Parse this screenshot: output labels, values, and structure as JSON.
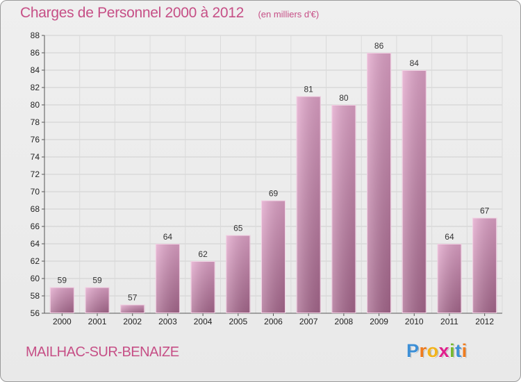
{
  "chart_data": {
    "type": "bar",
    "title": "Charges de Personnel 2000 à 2012",
    "subtitle": "(en milliers d'€)",
    "categories": [
      "2000",
      "2001",
      "2002",
      "2003",
      "2004",
      "2005",
      "2006",
      "2007",
      "2008",
      "2009",
      "2010",
      "2011",
      "2012"
    ],
    "values": [
      59,
      59,
      57,
      64,
      62,
      65,
      69,
      81,
      80,
      86,
      84,
      64,
      67
    ],
    "ylim": [
      56,
      88
    ],
    "yticks": [
      56,
      58,
      60,
      62,
      64,
      66,
      68,
      70,
      72,
      74,
      76,
      78,
      80,
      82,
      84,
      86,
      88
    ],
    "grid": true,
    "data_labels": true,
    "bar_color": "#d98db8"
  },
  "footer": {
    "commune": "MAILHAC-SUR-BENAIZE",
    "logo_letters": [
      "P",
      "r",
      "o",
      "x",
      "i",
      "t",
      "i"
    ],
    "logo_colors": [
      "#3d8fd6",
      "#f07c1e",
      "#f2b31c",
      "#e0208c",
      "#77b82e",
      "#3d8fd6",
      "#f07c1e"
    ]
  }
}
